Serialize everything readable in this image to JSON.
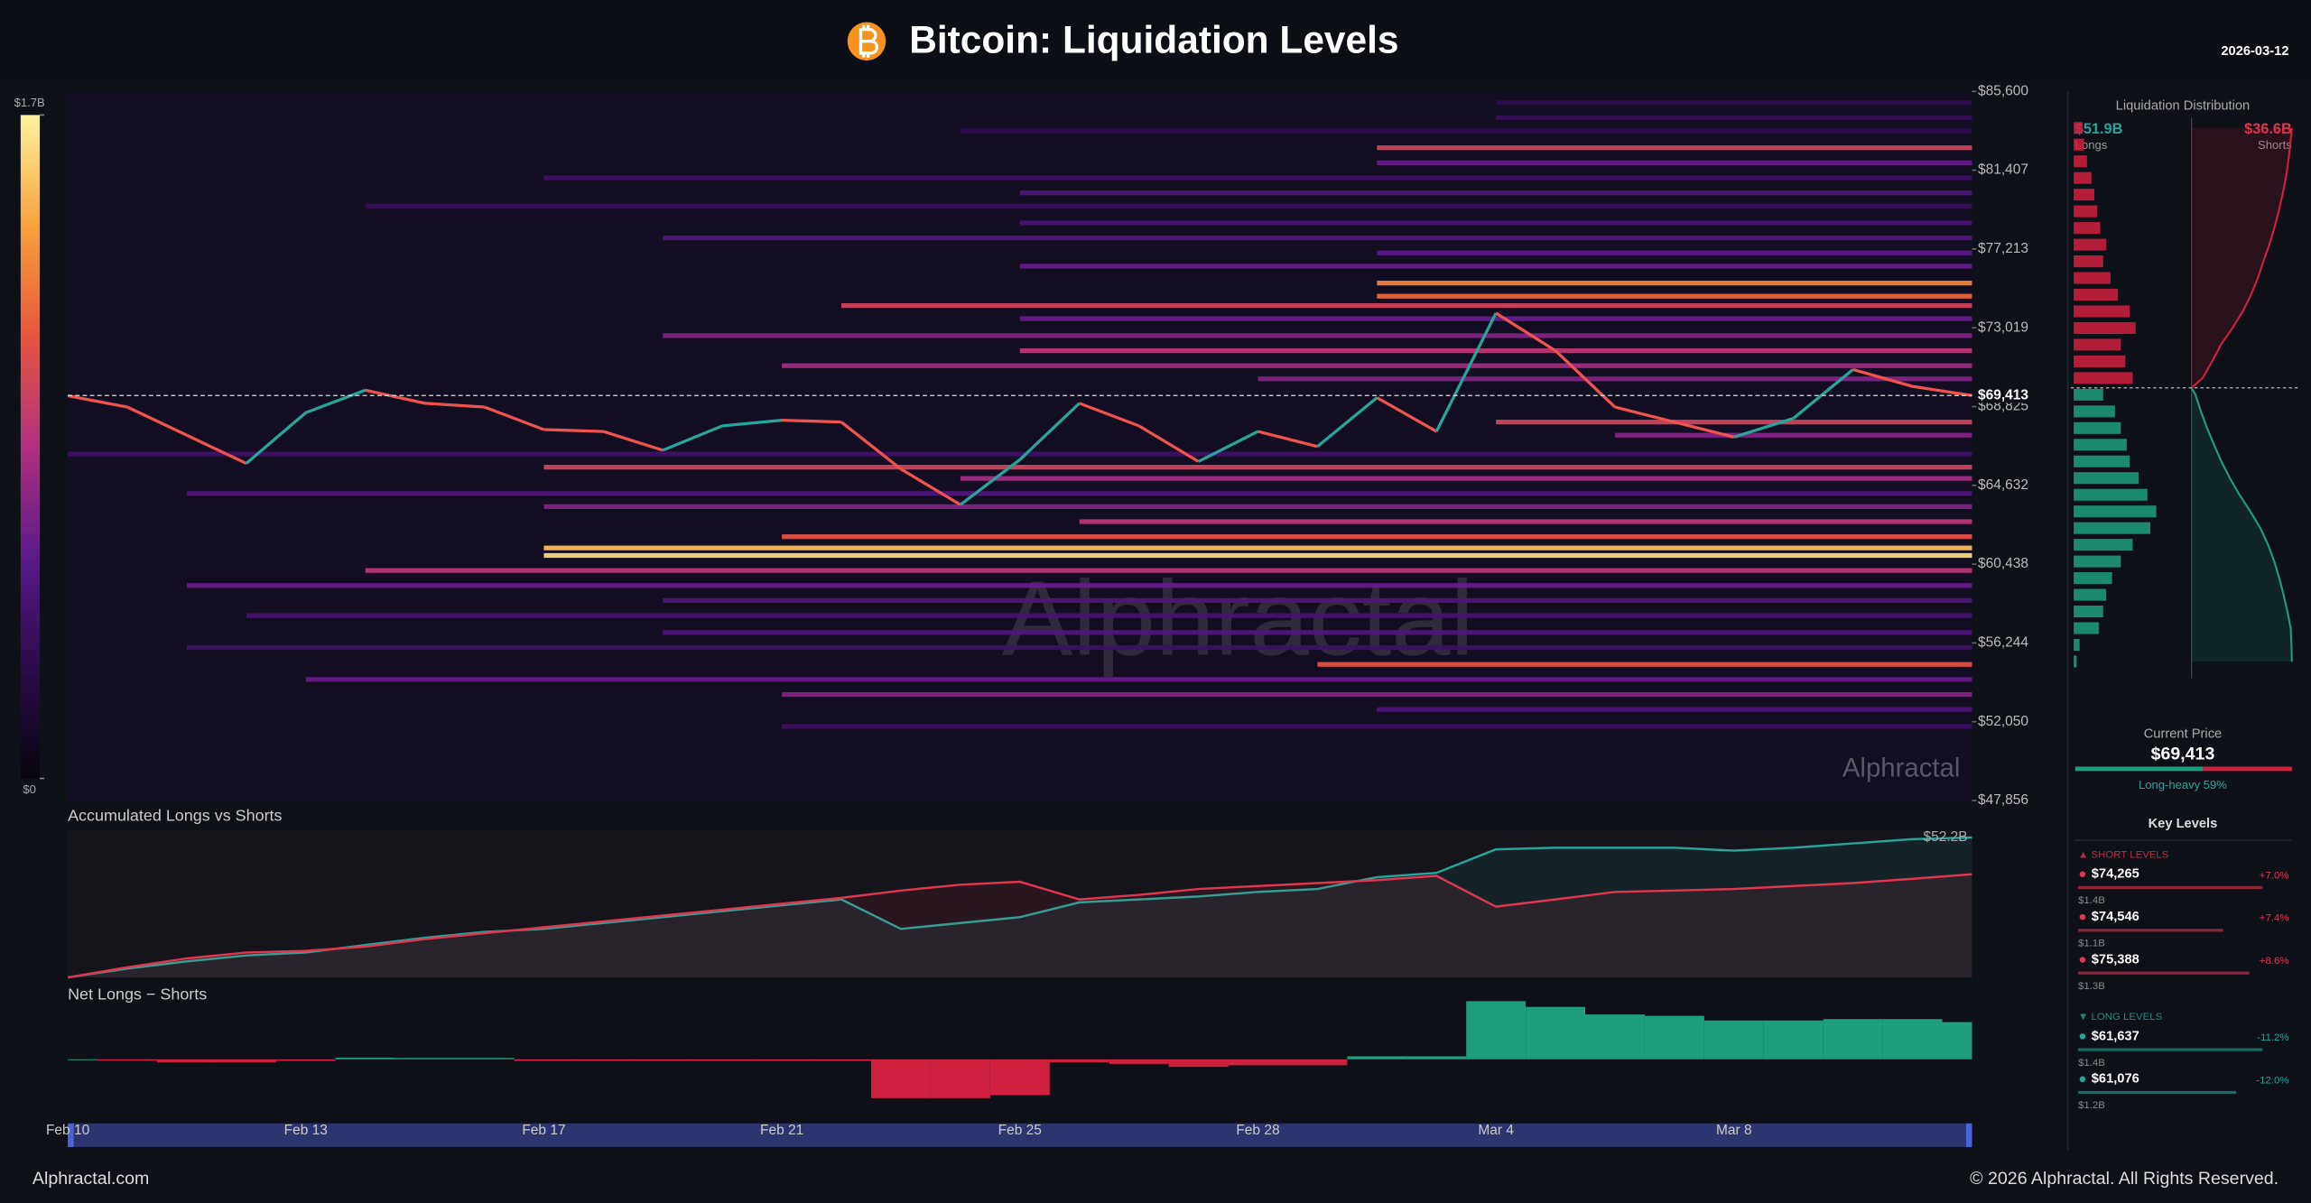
{
  "header": {
    "title": "Bitcoin: Liquidation Levels",
    "date": "2026-03-12"
  },
  "footer": {
    "site": "Alphractal.com",
    "copyright": "© 2026 Alphractal. All Rights Reserved."
  },
  "watermark": "Alphractal",
  "chart_data": [
    {
      "type": "heatmap",
      "categories": [
        "Feb 10",
        null,
        null,
        null,
        "Feb 13",
        null,
        null,
        null,
        "Feb 17",
        null,
        null,
        null,
        "Feb 21",
        null,
        null,
        null,
        "Feb 25",
        null,
        null,
        null,
        "Feb 28",
        null,
        null,
        null,
        "Mar 4",
        null,
        null,
        null,
        "Mar 8",
        null,
        null,
        null,
        null
      ],
      "values": [
        69400,
        68800,
        67300,
        65800,
        68500,
        69700,
        69000,
        68800,
        67600,
        67500,
        66500,
        67800,
        68100,
        68000,
        65500,
        63600,
        66000,
        69000,
        67800,
        65900,
        67500,
        66700,
        69300,
        67500,
        73800,
        71800,
        68800,
        68000,
        67200,
        68200,
        70800,
        69900,
        69413
      ],
      "up_color": "#26a69a",
      "down_color": "#ef5350",
      "ylim": [
        47856,
        85600
      ],
      "yticks": [
        {
          "value": 85600,
          "label": "$85,600"
        },
        {
          "value": 81407,
          "label": "$81,407"
        },
        {
          "value": 77213,
          "label": "$77,213"
        },
        {
          "value": 73019,
          "label": "$73,019"
        },
        {
          "value": 68825,
          "label": "$68,825"
        },
        {
          "value": 64632,
          "label": "$64,632"
        },
        {
          "value": 60438,
          "label": "$60,438"
        },
        {
          "value": 56244,
          "label": "$56,244"
        },
        {
          "value": 52050,
          "label": "$52,050"
        },
        {
          "value": 47856,
          "label": "$47,856"
        }
      ],
      "current_price": {
        "value": 69413,
        "label": "$69,413"
      },
      "colorscale": {
        "colors": [
          "#07050d",
          "#2a0b4a",
          "#5b1a8a",
          "#b0307e",
          "#e8553f",
          "#f7a23a",
          "#fdf2a0"
        ],
        "range": [
          0,
          1.7
        ],
        "ticks": [
          {
            "value": 1.7,
            "label": "$1.7B"
          },
          {
            "value": 0,
            "label": "$0"
          }
        ]
      },
      "levels": [
        {
          "price": 85000,
          "start": 24,
          "value": 0.3
        },
        {
          "price": 84200,
          "start": 24,
          "value": 0.35
        },
        {
          "price": 83500,
          "start": 15,
          "value": 0.3
        },
        {
          "price": 82600,
          "start": 22,
          "value": 1.0
        },
        {
          "price": 81800,
          "start": 22,
          "value": 0.6
        },
        {
          "price": 81000,
          "start": 8,
          "value": 0.4
        },
        {
          "price": 80200,
          "start": 16,
          "value": 0.5
        },
        {
          "price": 79500,
          "start": 5,
          "value": 0.35
        },
        {
          "price": 78600,
          "start": 16,
          "value": 0.45
        },
        {
          "price": 77800,
          "start": 10,
          "value": 0.5
        },
        {
          "price": 77000,
          "start": 22,
          "value": 0.55
        },
        {
          "price": 76300,
          "start": 16,
          "value": 0.6
        },
        {
          "price": 75400,
          "start": 22,
          "value": 1.3
        },
        {
          "price": 74700,
          "start": 22,
          "value": 1.2
        },
        {
          "price": 74200,
          "start": 13,
          "value": 1.0
        },
        {
          "price": 73500,
          "start": 16,
          "value": 0.6
        },
        {
          "price": 72600,
          "start": 10,
          "value": 0.7
        },
        {
          "price": 71800,
          "start": 16,
          "value": 0.9
        },
        {
          "price": 71000,
          "start": 12,
          "value": 0.8
        },
        {
          "price": 70300,
          "start": 20,
          "value": 0.7
        },
        {
          "price": 68000,
          "start": 24,
          "value": 1.0
        },
        {
          "price": 67300,
          "start": 26,
          "value": 0.7
        },
        {
          "price": 66300,
          "start": 0,
          "value": 0.4
        },
        {
          "price": 65600,
          "start": 8,
          "value": 1.0
        },
        {
          "price": 65000,
          "start": 15,
          "value": 0.8
        },
        {
          "price": 64200,
          "start": 2,
          "value": 0.5
        },
        {
          "price": 63500,
          "start": 8,
          "value": 0.7
        },
        {
          "price": 62700,
          "start": 17,
          "value": 0.9
        },
        {
          "price": 61900,
          "start": 12,
          "value": 1.1
        },
        {
          "price": 61300,
          "start": 8,
          "value": 1.5
        },
        {
          "price": 60900,
          "start": 8,
          "value": 1.6
        },
        {
          "price": 60100,
          "start": 5,
          "value": 0.9
        },
        {
          "price": 59300,
          "start": 2,
          "value": 0.6
        },
        {
          "price": 58500,
          "start": 10,
          "value": 0.5
        },
        {
          "price": 57700,
          "start": 3,
          "value": 0.45
        },
        {
          "price": 56800,
          "start": 10,
          "value": 0.5
        },
        {
          "price": 56000,
          "start": 2,
          "value": 0.4
        },
        {
          "price": 55100,
          "start": 21,
          "value": 1.1
        },
        {
          "price": 54300,
          "start": 4,
          "value": 0.6
        },
        {
          "price": 53500,
          "start": 12,
          "value": 0.7
        },
        {
          "price": 52700,
          "start": 22,
          "value": 0.5
        },
        {
          "price": 51800,
          "start": 12,
          "value": 0.4
        }
      ]
    },
    {
      "type": "area",
      "title": "Accumulated Longs vs Shorts",
      "ylim": [
        0,
        55
      ],
      "end_label": "$52.2B",
      "series": [
        {
          "color": "#26a69a",
          "values": [
            0,
            3.3,
            6.0,
            8.2,
            9.3,
            12.1,
            14.8,
            17.0,
            18.1,
            20.3,
            22.5,
            24.7,
            26.9,
            29.1,
            18.1,
            20.3,
            22.5,
            28.0,
            29.1,
            30.2,
            31.9,
            33.0,
            37.4,
            39.0,
            47.8,
            48.4,
            48.4,
            48.4,
            47.3,
            48.4,
            50.0,
            51.6,
            52.2
          ]
        },
        {
          "color": "#e0364f",
          "values": [
            0,
            3.8,
            7.1,
            9.3,
            9.9,
            11.5,
            14.3,
            16.5,
            18.7,
            20.9,
            23.1,
            25.3,
            27.5,
            29.7,
            32.4,
            34.6,
            35.7,
            29.1,
            30.8,
            33.0,
            34.1,
            35.2,
            36.3,
            37.9,
            26.4,
            29.1,
            31.9,
            32.4,
            33.0,
            34.1,
            35.2,
            36.8,
            38.5
          ]
        }
      ]
    },
    {
      "type": "bar",
      "title": "Net Longs − Shorts",
      "ylim": [
        -16,
        22
      ],
      "pos_color": "#1f9e7e",
      "neg_color": "#d0203f",
      "values": [
        0,
        -0.5,
        -1.1,
        -1.1,
        -0.6,
        0.6,
        0.5,
        0.5,
        -0.6,
        -0.6,
        -0.6,
        -0.6,
        -0.6,
        -0.6,
        -14.3,
        -14.3,
        -13.2,
        -1.1,
        -1.7,
        -2.8,
        -2.2,
        -2.2,
        1.1,
        1.1,
        21.4,
        19.3,
        16.5,
        16.0,
        14.3,
        14.3,
        14.8,
        14.8,
        13.7
      ]
    },
    {
      "type": "hbar",
      "title": "Liquidation Distribution",
      "xlim": [
        0,
        8
      ],
      "ylim": [
        52000,
        85600
      ],
      "prices": [
        53000,
        54000,
        55000,
        56000,
        57000,
        58000,
        59000,
        60000,
        61000,
        62000,
        63000,
        64000,
        65000,
        66000,
        67000,
        68000,
        69000,
        70000,
        71000,
        72000,
        73000,
        74000,
        75000,
        76000,
        77000,
        78000,
        79000,
        80000,
        81000,
        82000,
        83000,
        84000,
        85000
      ],
      "series": [
        {
          "name": "Longs",
          "total": 51.9,
          "total_label": "$51.9B",
          "color": "#1f9e7e",
          "values": [
            0.2,
            0.4,
            1.7,
            2.0,
            2.2,
            2.6,
            3.2,
            4.0,
            5.2,
            5.6,
            5.0,
            4.4,
            3.8,
            3.6,
            3.2,
            2.8,
            2.0,
            null,
            null,
            null,
            null,
            null,
            null,
            null,
            null,
            null,
            null,
            null,
            null,
            null,
            null,
            null,
            null
          ]
        },
        {
          "name": "Shorts",
          "total": 36.6,
          "total_label": "$36.6B",
          "color": "#d0203f",
          "values": [
            null,
            null,
            null,
            null,
            null,
            null,
            null,
            null,
            null,
            null,
            null,
            null,
            null,
            null,
            null,
            null,
            null,
            4.0,
            3.5,
            3.2,
            4.2,
            3.8,
            3.0,
            2.5,
            2.0,
            2.2,
            1.8,
            1.6,
            1.4,
            1.2,
            0.9,
            0.7,
            0.6
          ]
        }
      ]
    }
  ],
  "sidebar": {
    "current_label": "Current Price",
    "long_share": {
      "value": 59,
      "label": "Long-heavy 59%"
    },
    "key_levels_title": "Key Levels",
    "xlim": [
      0,
      1.6
    ],
    "short_levels": {
      "title": "▲ SHORT LEVELS",
      "items": [
        {
          "price": "$74,265",
          "change": "+7.0%",
          "size": {
            "value": 1.4,
            "label": "$1.4B"
          }
        },
        {
          "price": "$74,546",
          "change": "+7.4%",
          "size": {
            "value": 1.1,
            "label": "$1.1B"
          }
        },
        {
          "price": "$75,388",
          "change": "+8.6%",
          "size": {
            "value": 1.3,
            "label": "$1.3B"
          }
        }
      ]
    },
    "long_levels": {
      "title": "▼ LONG LEVELS",
      "items": [
        {
          "price": "$61,637",
          "change": "-11.2%",
          "size": {
            "value": 1.4,
            "label": "$1.4B"
          }
        },
        {
          "price": "$61,076",
          "change": "-12.0%",
          "size": {
            "value": 1.2,
            "label": "$1.2B"
          }
        }
      ]
    }
  }
}
